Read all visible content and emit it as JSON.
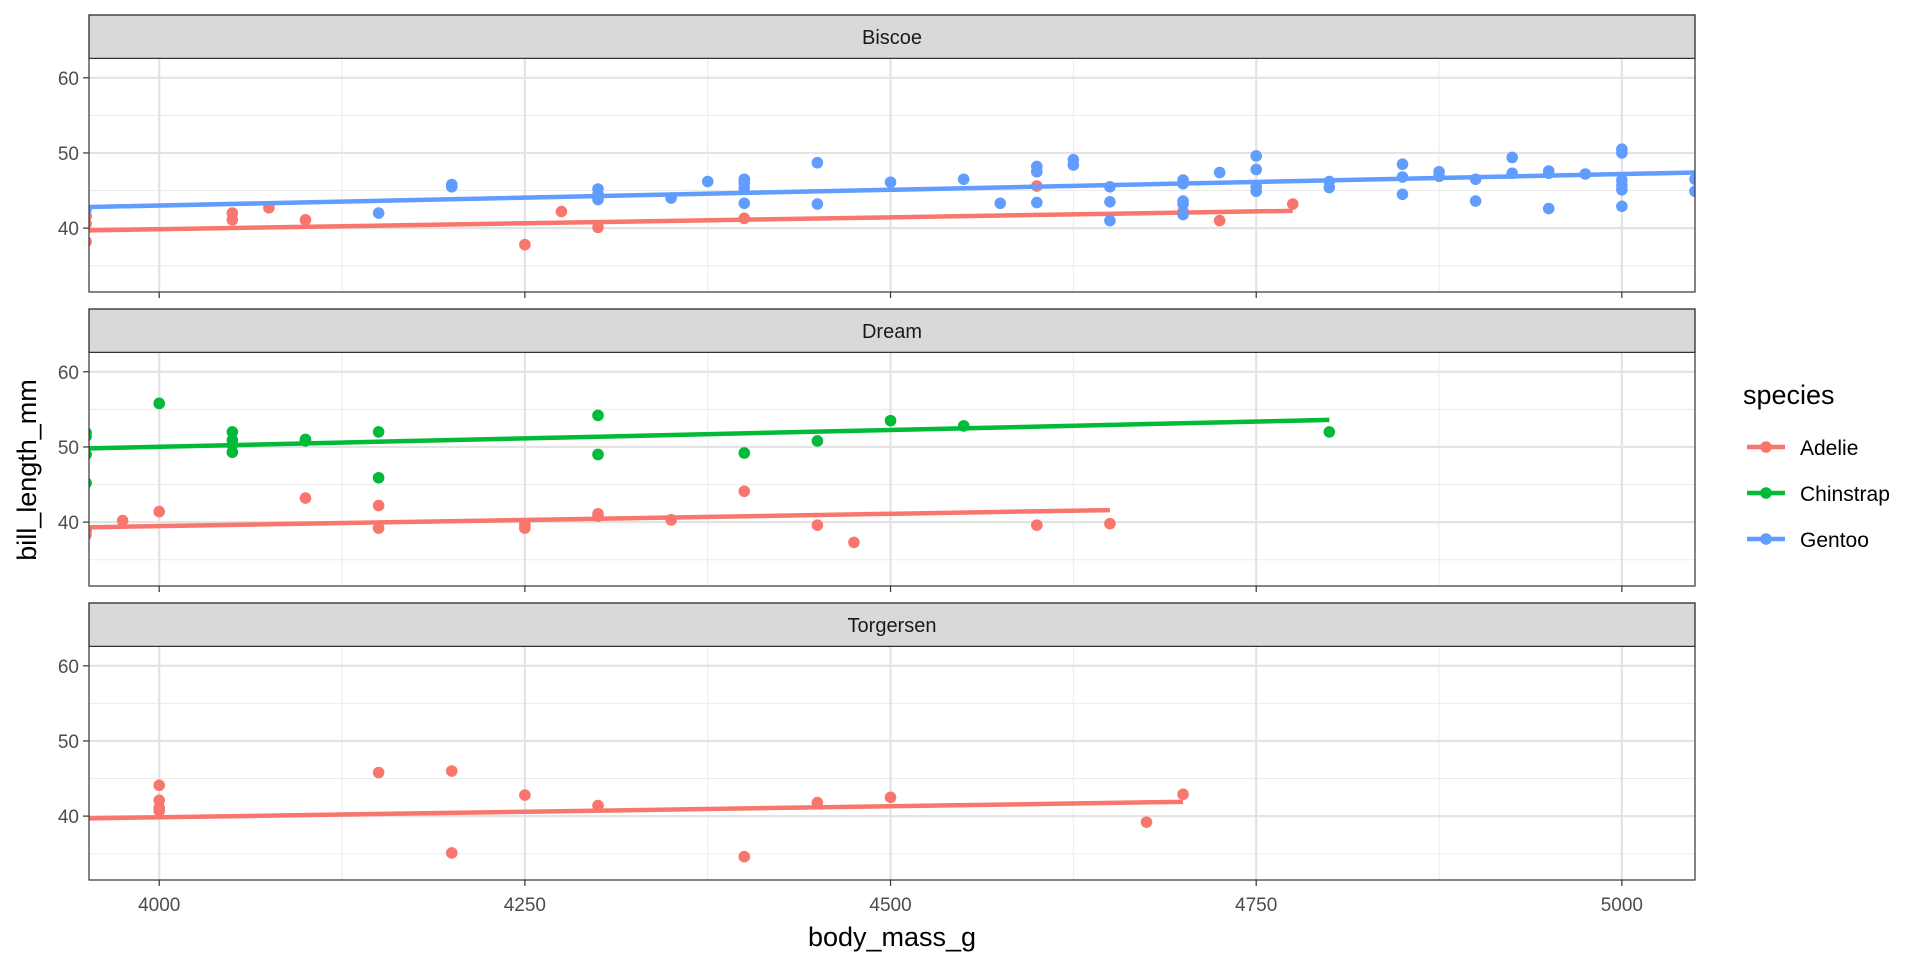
{
  "chart_data": {
    "type": "scatter",
    "xlabel": "body_mass_g",
    "ylabel": "bill_length_mm",
    "xlim": [
      3952,
      5050
    ],
    "ylim": [
      31.5,
      62.5
    ],
    "x_ticks": [
      4000,
      4250,
      4500,
      4750,
      5000
    ],
    "x_tick_labels": [
      "4000",
      "4250",
      "4500",
      "4750",
      "5000"
    ],
    "y_ticks": [
      40,
      50,
      60
    ],
    "y_tick_labels": [
      "40",
      "50",
      "60"
    ],
    "grid": true,
    "legend": {
      "title": "species",
      "placement": "right",
      "entries": [
        {
          "name": "Adelie",
          "color": "#F8766D"
        },
        {
          "name": "Chinstrap",
          "color": "#00BA38"
        },
        {
          "name": "Gentoo",
          "color": "#619CFF"
        }
      ]
    },
    "panels": [
      {
        "facet": "Biscoe",
        "series": [
          {
            "name": "Adelie",
            "color": "#F8766D",
            "points": [
              [
                3950,
                38.2
              ],
              [
                3950,
                40.6
              ],
              [
                3950,
                41.6
              ],
              [
                4050,
                41.1
              ],
              [
                4050,
                42.0
              ],
              [
                4075,
                42.7
              ],
              [
                4100,
                41.1
              ],
              [
                4250,
                37.8
              ],
              [
                4275,
                42.2
              ],
              [
                4300,
                40.1
              ],
              [
                4400,
                41.3
              ],
              [
                4600,
                45.6
              ],
              [
                4700,
                42.2
              ],
              [
                4725,
                41.0
              ],
              [
                4775,
                43.2
              ]
            ],
            "fit": [
              [
                3950,
                39.7
              ],
              [
                4775,
                42.3
              ]
            ]
          },
          {
            "name": "Gentoo",
            "color": "#619CFF",
            "points": [
              [
                3950,
                42.5
              ],
              [
                4150,
                42.0
              ],
              [
                4200,
                45.5
              ],
              [
                4200,
                45.8
              ],
              [
                4300,
                43.8
              ],
              [
                4300,
                44.5
              ],
              [
                4300,
                45.2
              ],
              [
                4350,
                44.0
              ],
              [
                4375,
                46.2
              ],
              [
                4400,
                43.3
              ],
              [
                4400,
                45.3
              ],
              [
                4400,
                46.0
              ],
              [
                4400,
                46.5
              ],
              [
                4450,
                43.2
              ],
              [
                4450,
                48.7
              ],
              [
                4500,
                46.1
              ],
              [
                4550,
                46.5
              ],
              [
                4575,
                43.3
              ],
              [
                4600,
                43.4
              ],
              [
                4600,
                47.5
              ],
              [
                4600,
                48.2
              ],
              [
                4625,
                48.4
              ],
              [
                4625,
                49.1
              ],
              [
                4650,
                41.0
              ],
              [
                4650,
                43.5
              ],
              [
                4650,
                45.5
              ],
              [
                4700,
                41.8
              ],
              [
                4700,
                43.2
              ],
              [
                4700,
                43.6
              ],
              [
                4700,
                45.9
              ],
              [
                4700,
                46.4
              ],
              [
                4725,
                47.4
              ],
              [
                4750,
                44.9
              ],
              [
                4750,
                45.5
              ],
              [
                4750,
                47.8
              ],
              [
                4750,
                49.6
              ],
              [
                4800,
                45.4
              ],
              [
                4800,
                46.2
              ],
              [
                4850,
                44.5
              ],
              [
                4850,
                46.8
              ],
              [
                4850,
                48.5
              ],
              [
                4875,
                46.9
              ],
              [
                4875,
                47.5
              ],
              [
                4900,
                43.6
              ],
              [
                4900,
                46.5
              ],
              [
                4925,
                47.3
              ],
              [
                4925,
                49.4
              ],
              [
                4950,
                42.6
              ],
              [
                4950,
                47.3
              ],
              [
                4950,
                47.6
              ],
              [
                4975,
                47.2
              ],
              [
                5000,
                42.9
              ],
              [
                5000,
                45.1
              ],
              [
                5000,
                45.7
              ],
              [
                5000,
                46.4
              ],
              [
                5000,
                50.0
              ],
              [
                5000,
                50.5
              ],
              [
                5050,
                44.9
              ],
              [
                5050,
                46.5
              ]
            ],
            "fit": [
              [
                3950,
                42.8
              ],
              [
                5050,
                47.4
              ]
            ]
          }
        ]
      },
      {
        "facet": "Dream",
        "series": [
          {
            "name": "Adelie",
            "color": "#F8766D",
            "points": [
              [
                3950,
                38.3
              ],
              [
                3950,
                38.8
              ],
              [
                3975,
                40.2
              ],
              [
                4000,
                41.4
              ],
              [
                4100,
                43.2
              ],
              [
                4150,
                39.2
              ],
              [
                4150,
                42.2
              ],
              [
                4250,
                39.2
              ],
              [
                4250,
                39.7
              ],
              [
                4300,
                40.8
              ],
              [
                4300,
                41.1
              ],
              [
                4350,
                40.3
              ],
              [
                4400,
                44.1
              ],
              [
                4450,
                39.6
              ],
              [
                4475,
                37.3
              ],
              [
                4600,
                39.6
              ],
              [
                4650,
                39.8
              ]
            ],
            "fit": [
              [
                3950,
                39.3
              ],
              [
                4650,
                41.6
              ]
            ]
          },
          {
            "name": "Chinstrap",
            "color": "#00BA38",
            "points": [
              [
                3950,
                45.2
              ],
              [
                3950,
                49.0
              ],
              [
                3950,
                51.4
              ],
              [
                3950,
                51.9
              ],
              [
                4000,
                55.8
              ],
              [
                4050,
                49.3
              ],
              [
                4050,
                50.3
              ],
              [
                4050,
                50.9
              ],
              [
                4050,
                52.0
              ],
              [
                4100,
                50.8
              ],
              [
                4100,
                51.0
              ],
              [
                4150,
                45.9
              ],
              [
                4150,
                52.0
              ],
              [
                4300,
                49.0
              ],
              [
                4300,
                54.2
              ],
              [
                4400,
                49.2
              ],
              [
                4450,
                50.8
              ],
              [
                4500,
                53.5
              ],
              [
                4550,
                52.8
              ],
              [
                4800,
                52.0
              ]
            ],
            "fit": [
              [
                3950,
                49.8
              ],
              [
                4800,
                53.6
              ]
            ]
          }
        ]
      },
      {
        "facet": "Torgersen",
        "series": [
          {
            "name": "Adelie",
            "color": "#F8766D",
            "points": [
              [
                4000,
                40.7
              ],
              [
                4000,
                41.1
              ],
              [
                4000,
                42.1
              ],
              [
                4000,
                44.1
              ],
              [
                4150,
                45.8
              ],
              [
                4200,
                35.1
              ],
              [
                4200,
                46.0
              ],
              [
                4250,
                42.8
              ],
              [
                4300,
                41.4
              ],
              [
                4400,
                34.6
              ],
              [
                4450,
                41.8
              ],
              [
                4500,
                42.5
              ],
              [
                4675,
                39.2
              ],
              [
                4700,
                42.9
              ]
            ],
            "fit": [
              [
                3950,
                39.7
              ],
              [
                4700,
                41.9
              ]
            ]
          }
        ]
      }
    ]
  }
}
